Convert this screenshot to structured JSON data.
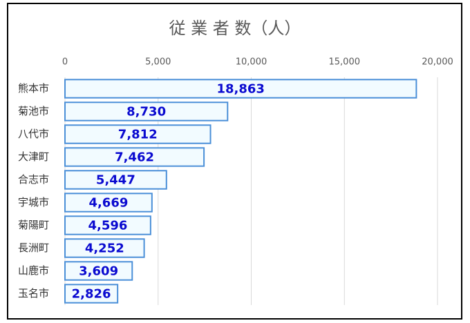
{
  "chart_data": {
    "type": "bar",
    "orientation": "horizontal",
    "title": "従 業 者 数（人）",
    "categories": [
      "熊本市",
      "菊池市",
      "八代市",
      "大津町",
      "合志市",
      "宇城市",
      "菊陽町",
      "長洲町",
      "山鹿市",
      "玉名市"
    ],
    "values": [
      18863,
      8730,
      7812,
      7462,
      5447,
      4669,
      4596,
      4252,
      3609,
      2826
    ],
    "value_labels": [
      "18,863",
      "8,730",
      "7,812",
      "7,462",
      "5,447",
      "4,669",
      "4,596",
      "4,252",
      "3,609",
      "2,826"
    ],
    "color": "#f2fbff",
    "edge_color": "#4a8fd8",
    "label_color": "#0a0ad0",
    "xlim": [
      0,
      20000
    ],
    "xticks": [
      0,
      {
        "value": 5000,
        "label": "5,000"
      },
      {
        "value": 10000,
        "label": "10,000"
      },
      {
        "value": 15000,
        "label": "15,000"
      },
      {
        "value": 20000,
        "label": "20,000"
      }
    ],
    "grid": true
  }
}
